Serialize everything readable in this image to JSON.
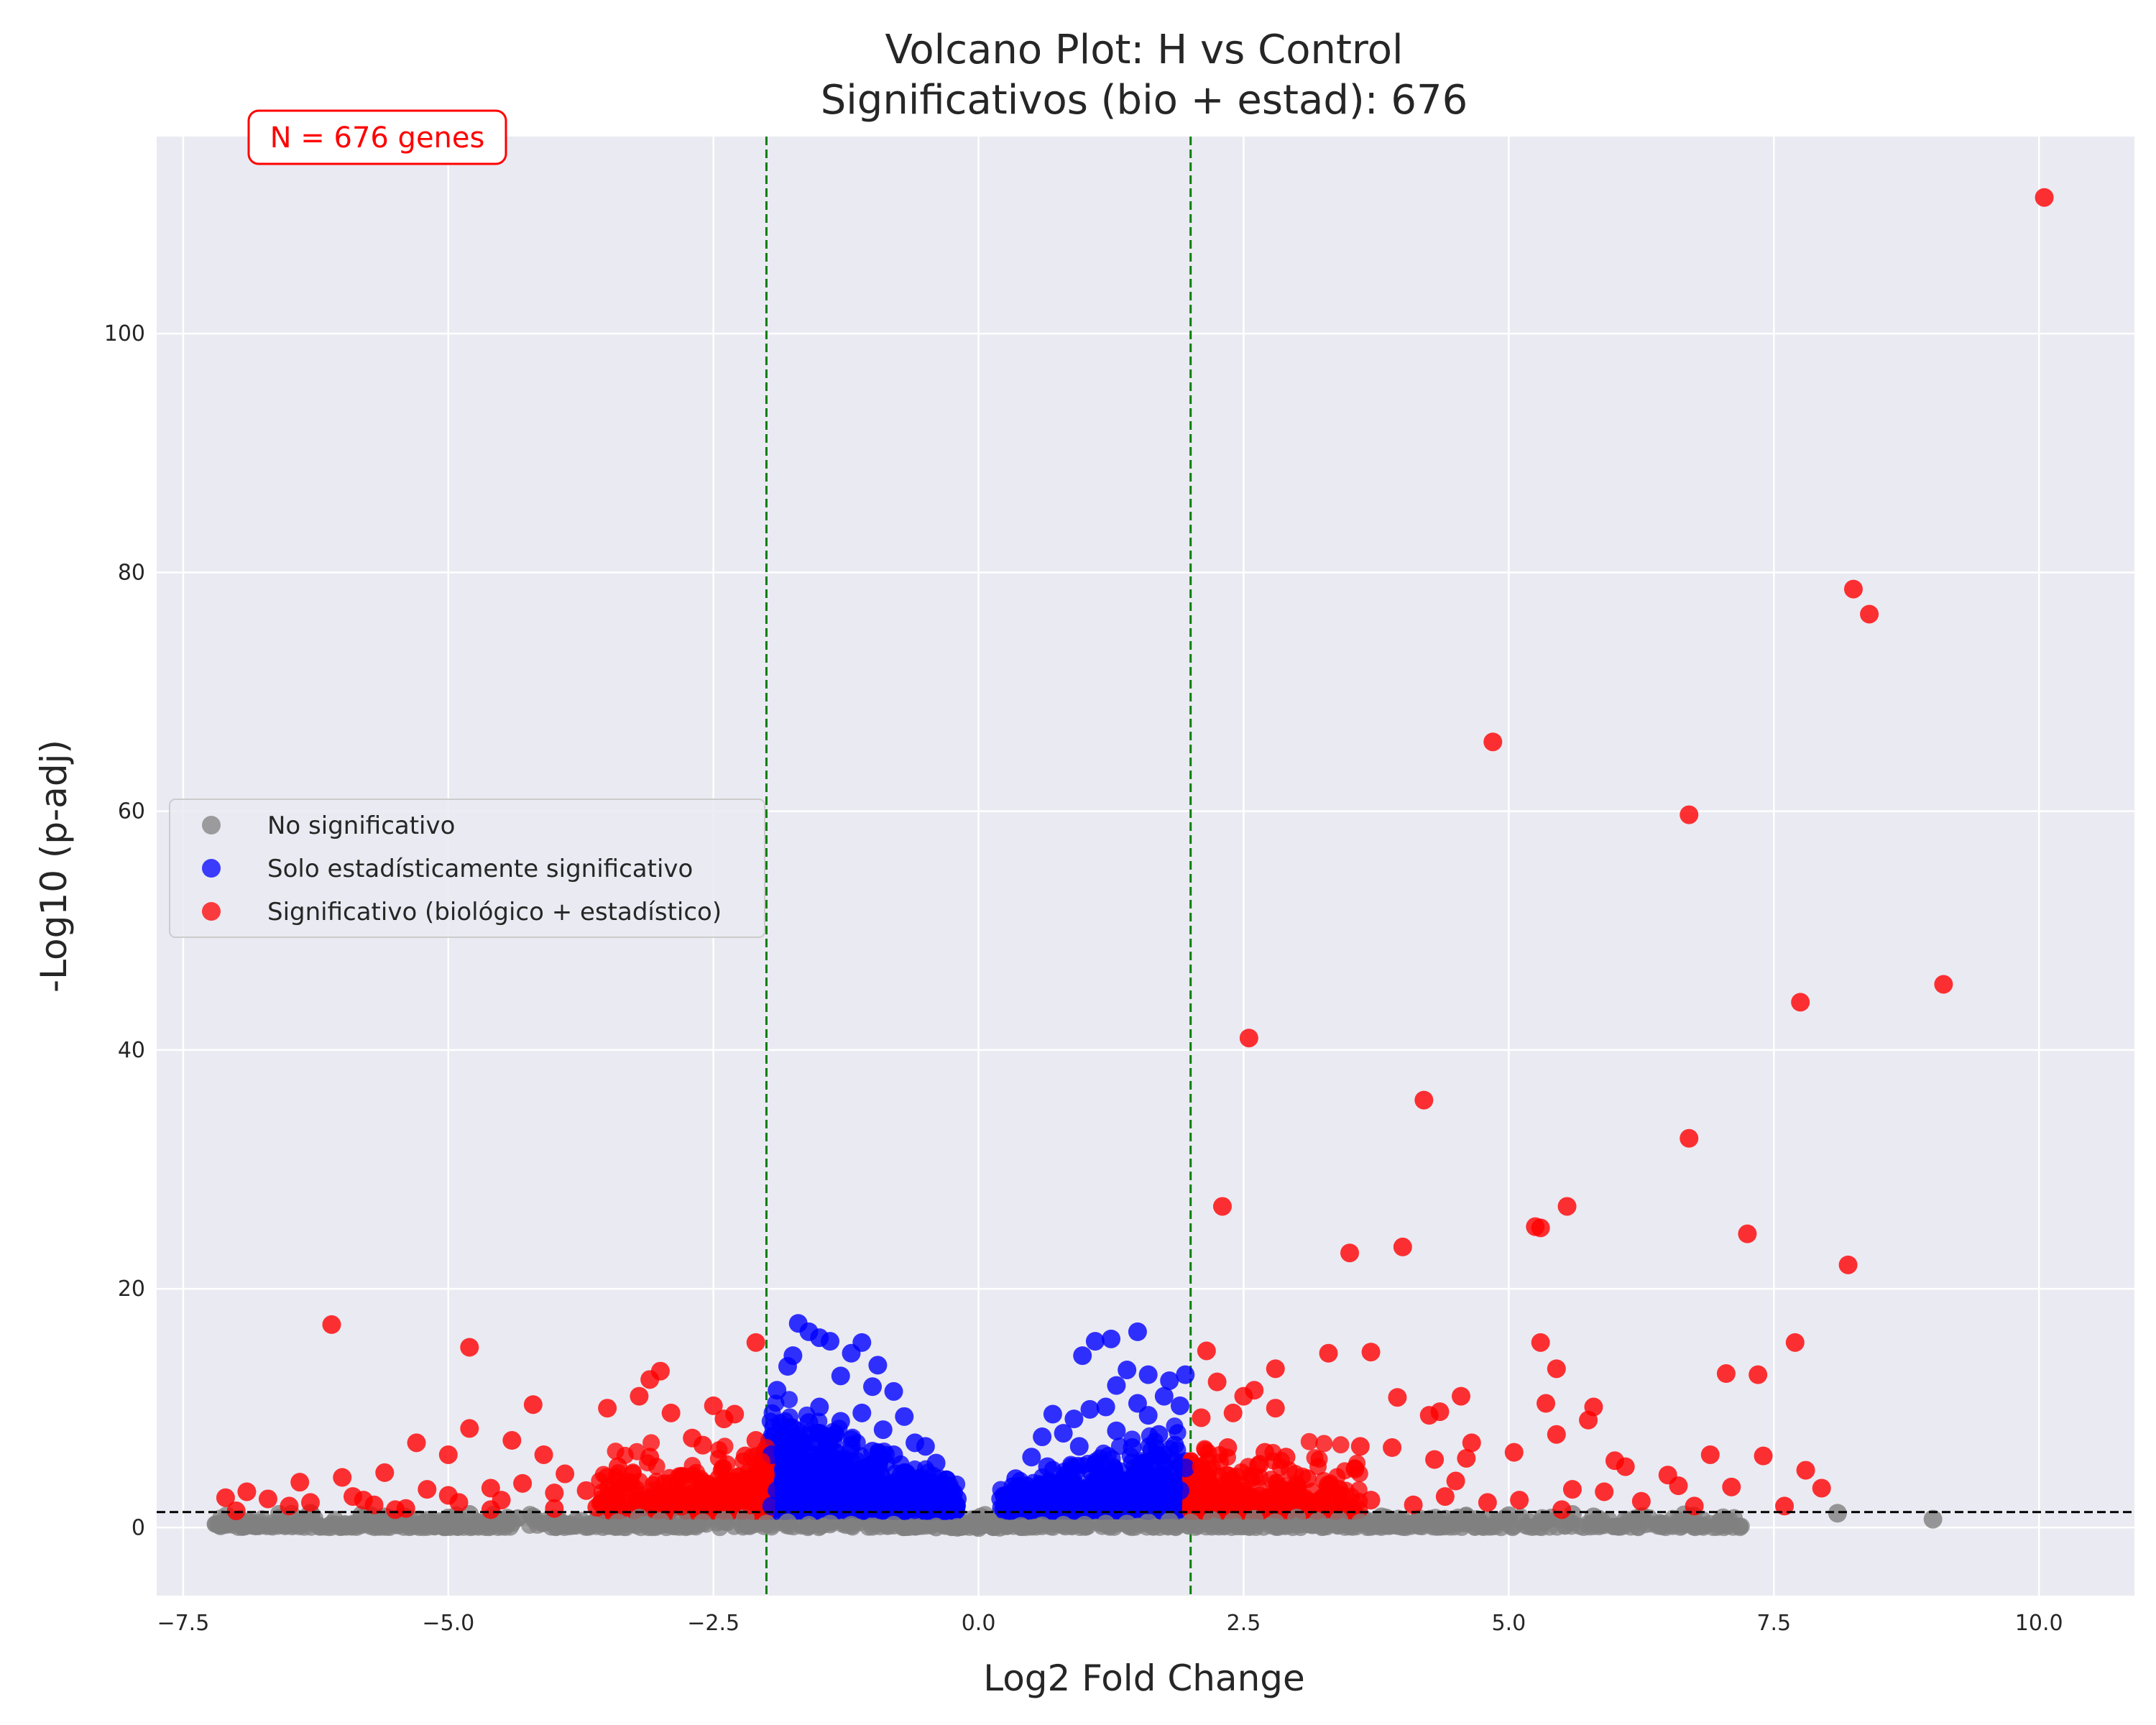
{
  "chart_data": {
    "type": "scatter",
    "title": "Volcano Plot: H vs Control",
    "subtitle": "Significativos (bio + estad): 676",
    "xlabel": "Log2 Fold Change",
    "ylabel": "-Log10 (p-adj)",
    "xlim": [
      -7.75,
      10.9
    ],
    "ylim": [
      -5.7,
      116.5
    ],
    "xticks": [
      -7.5,
      -5.0,
      -2.5,
      0.0,
      2.5,
      5.0,
      7.5,
      10.0
    ],
    "xtick_labels": [
      "−7.5",
      "−5.0",
      "−2.5",
      "0.0",
      "2.5",
      "5.0",
      "7.5",
      "10.0"
    ],
    "yticks": [
      0,
      20,
      40,
      60,
      80,
      100
    ],
    "ytick_labels": [
      "0",
      "20",
      "40",
      "60",
      "80",
      "100"
    ],
    "grid": true,
    "background": "#eaeaf2",
    "legend_position": "center-left",
    "thresholds": {
      "log2fc": [
        -2,
        2
      ],
      "neg_log10_padj": 1.3
    },
    "annotation": "N = 676 genes",
    "series": [
      {
        "name": "No significativo",
        "color": "#808080",
        "points": [
          [
            -6.3,
            1.2
          ],
          [
            -5.6,
            0.9
          ],
          [
            -5.2,
            0.6
          ],
          [
            -5.0,
            0.8
          ],
          [
            -4.8,
            1.1
          ],
          [
            -4.6,
            0.5
          ],
          [
            -4.4,
            0.4
          ],
          [
            -4.2,
            0.9
          ],
          [
            -4.0,
            0.7
          ],
          [
            -3.8,
            0.5
          ],
          [
            -3.6,
            0.6
          ],
          [
            -3.4,
            0.4
          ],
          [
            -3.2,
            0.8
          ],
          [
            -3.0,
            0.5
          ],
          [
            -2.8,
            0.7
          ],
          [
            -2.6,
            0.4
          ],
          [
            -2.4,
            0.6
          ],
          [
            -2.2,
            0.8
          ],
          [
            -2.0,
            0.3
          ],
          [
            -1.8,
            0.4
          ],
          [
            -1.6,
            0.2
          ],
          [
            -1.4,
            0.3
          ],
          [
            -1.2,
            0.2
          ],
          [
            -1.0,
            0.1
          ],
          [
            -0.8,
            0.2
          ],
          [
            -0.6,
            0.1
          ],
          [
            -0.4,
            0.05
          ],
          [
            -0.2,
            0.02
          ],
          [
            0.0,
            0.0
          ],
          [
            0.2,
            0.03
          ],
          [
            0.4,
            0.1
          ],
          [
            0.6,
            0.15
          ],
          [
            0.8,
            0.2
          ],
          [
            1.0,
            0.2
          ],
          [
            1.2,
            0.3
          ],
          [
            1.4,
            0.3
          ],
          [
            1.6,
            0.4
          ],
          [
            1.8,
            0.5
          ],
          [
            2.0,
            0.4
          ],
          [
            2.2,
            0.6
          ],
          [
            2.4,
            0.5
          ],
          [
            2.6,
            0.7
          ],
          [
            2.8,
            0.4
          ],
          [
            3.0,
            0.8
          ],
          [
            3.2,
            0.5
          ],
          [
            3.4,
            0.6
          ],
          [
            3.6,
            0.4
          ],
          [
            3.8,
            0.9
          ],
          [
            4.0,
            0.6
          ],
          [
            4.2,
            0.5
          ],
          [
            4.4,
            0.7
          ],
          [
            4.6,
            0.9
          ],
          [
            4.8,
            0.6
          ],
          [
            5.0,
            1.0
          ],
          [
            5.2,
            0.4
          ],
          [
            5.4,
            0.8
          ],
          [
            5.6,
            1.1
          ],
          [
            5.8,
            0.9
          ],
          [
            6.1,
            0.6
          ],
          [
            8.1,
            1.2
          ],
          [
            9.0,
            0.7
          ]
        ]
      },
      {
        "name": "Solo estadísticamente significativo",
        "color": "#0000ff",
        "points": [
          [
            -1.7,
            17.1
          ],
          [
            -1.6,
            16.4
          ],
          [
            -1.5,
            15.9
          ],
          [
            -1.4,
            15.6
          ],
          [
            -1.1,
            15.5
          ],
          [
            -1.2,
            14.6
          ],
          [
            -1.75,
            14.4
          ],
          [
            -1.8,
            13.5
          ],
          [
            -0.95,
            13.6
          ],
          [
            -1.3,
            12.7
          ],
          [
            -1.9,
            11.5
          ],
          [
            -1.0,
            11.8
          ],
          [
            -0.8,
            11.4
          ],
          [
            -0.7,
            9.3
          ],
          [
            -0.5,
            6.8
          ],
          [
            -1.5,
            10.1
          ],
          [
            -1.6,
            8.8
          ],
          [
            -1.3,
            8.9
          ],
          [
            -1.1,
            9.6
          ],
          [
            -0.9,
            8.2
          ],
          [
            -0.6,
            7.1
          ],
          [
            -0.4,
            5.4
          ],
          [
            -0.3,
            4.0
          ],
          [
            -0.2,
            2.4
          ],
          [
            -1.85,
            7.4
          ],
          [
            -1.95,
            6.1
          ],
          [
            -1.7,
            7.7
          ],
          [
            -1.4,
            7.5
          ],
          [
            -1.2,
            6.9
          ],
          [
            -1.0,
            6.4
          ],
          [
            -0.8,
            6.1
          ],
          [
            -1.6,
            5.4
          ],
          [
            -1.3,
            5.1
          ],
          [
            -1.8,
            4.6
          ],
          [
            -1.5,
            3.9
          ],
          [
            -1.1,
            4.2
          ],
          [
            -0.7,
            4.6
          ],
          [
            -1.9,
            3.1
          ],
          [
            -1.4,
            2.8
          ],
          [
            -0.9,
            3.1
          ],
          [
            -0.5,
            2.5
          ],
          [
            -1.7,
            2.1
          ],
          [
            -1.2,
            2.3
          ],
          [
            -0.3,
            1.7
          ],
          [
            -1.95,
            1.8
          ],
          [
            -1.0,
            1.6
          ],
          [
            -0.6,
            1.5
          ],
          [
            1.5,
            16.4
          ],
          [
            1.1,
            15.6
          ],
          [
            1.25,
            15.8
          ],
          [
            0.98,
            14.4
          ],
          [
            1.3,
            11.9
          ],
          [
            1.4,
            13.2
          ],
          [
            1.6,
            12.8
          ],
          [
            1.8,
            12.3
          ],
          [
            1.95,
            12.8
          ],
          [
            1.75,
            11.0
          ],
          [
            0.7,
            9.5
          ],
          [
            1.2,
            10.1
          ],
          [
            1.05,
            9.9
          ],
          [
            0.9,
            9.1
          ],
          [
            1.6,
            9.4
          ],
          [
            1.9,
            10.2
          ],
          [
            1.5,
            10.4
          ],
          [
            0.6,
            7.6
          ],
          [
            0.8,
            7.9
          ],
          [
            1.3,
            8.1
          ],
          [
            1.7,
            7.8
          ],
          [
            0.5,
            5.9
          ],
          [
            0.95,
            6.8
          ],
          [
            1.45,
            6.7
          ],
          [
            1.85,
            6.9
          ],
          [
            0.35,
            4.1
          ],
          [
            0.65,
            5.1
          ],
          [
            1.1,
            5.3
          ],
          [
            1.55,
            5.4
          ],
          [
            1.95,
            5.0
          ],
          [
            0.25,
            2.6
          ],
          [
            0.45,
            3.5
          ],
          [
            0.8,
            4.0
          ],
          [
            1.25,
            4.3
          ],
          [
            1.7,
            4.1
          ],
          [
            0.3,
            1.8
          ],
          [
            0.55,
            2.3
          ],
          [
            1.0,
            2.7
          ],
          [
            1.4,
            2.9
          ],
          [
            1.9,
            3.1
          ],
          [
            0.75,
            1.7
          ],
          [
            1.6,
            1.9
          ]
        ]
      },
      {
        "name": "Significativo (biológico + estadístico)",
        "color": "#ff0000",
        "points": [
          [
            -7.1,
            2.5
          ],
          [
            -7.0,
            1.4
          ],
          [
            -6.9,
            3.0
          ],
          [
            -6.7,
            2.4
          ],
          [
            -6.5,
            1.8
          ],
          [
            -6.4,
            3.8
          ],
          [
            -6.3,
            2.1
          ],
          [
            -6.1,
            17.0
          ],
          [
            -6.0,
            4.2
          ],
          [
            -5.9,
            2.6
          ],
          [
            -5.8,
            2.3
          ],
          [
            -5.7,
            1.9
          ],
          [
            -5.6,
            4.6
          ],
          [
            -5.4,
            1.6
          ],
          [
            -5.3,
            7.1
          ],
          [
            -5.2,
            3.2
          ],
          [
            -5.0,
            2.7
          ],
          [
            -5.0,
            6.1
          ],
          [
            -4.9,
            2.1
          ],
          [
            -4.8,
            15.1
          ],
          [
            -4.8,
            8.3
          ],
          [
            -4.6,
            3.3
          ],
          [
            -4.5,
            2.3
          ],
          [
            -4.4,
            7.3
          ],
          [
            -4.3,
            3.7
          ],
          [
            -4.2,
            10.3
          ],
          [
            -4.1,
            6.1
          ],
          [
            -4.0,
            2.9
          ],
          [
            -3.9,
            4.5
          ],
          [
            -3.7,
            3.1
          ],
          [
            -3.5,
            10.0
          ],
          [
            -3.4,
            5.1
          ],
          [
            -3.3,
            3.8
          ],
          [
            -3.2,
            11.0
          ],
          [
            -3.1,
            12.4
          ],
          [
            -3.0,
            13.1
          ],
          [
            -2.9,
            9.6
          ],
          [
            -2.8,
            4.3
          ],
          [
            -2.7,
            7.5
          ],
          [
            -2.6,
            6.9
          ],
          [
            -2.5,
            10.2
          ],
          [
            -2.4,
            9.1
          ],
          [
            -2.3,
            9.5
          ],
          [
            -2.2,
            6.0
          ],
          [
            -2.1,
            15.5
          ],
          [
            -2.05,
            5.5
          ],
          [
            -2.6,
            2.2
          ],
          [
            -2.3,
            3.0
          ],
          [
            -2.8,
            1.8
          ],
          [
            -3.5,
            2.3
          ],
          [
            -4.0,
            1.6
          ],
          [
            -2.2,
            2.6
          ],
          [
            -2.45,
            4.1
          ],
          [
            -2.1,
            7.3
          ],
          [
            -2.15,
            1.9
          ],
          [
            -3.1,
            5.9
          ],
          [
            -2.9,
            3.7
          ],
          [
            -3.6,
            1.7
          ],
          [
            -4.6,
            1.5
          ],
          [
            -5.5,
            1.5
          ],
          [
            2.1,
            9.2
          ],
          [
            2.15,
            14.8
          ],
          [
            2.25,
            12.2
          ],
          [
            2.3,
            26.9
          ],
          [
            2.4,
            9.6
          ],
          [
            2.5,
            11.0
          ],
          [
            2.55,
            41.0
          ],
          [
            2.6,
            11.5
          ],
          [
            2.7,
            6.3
          ],
          [
            2.8,
            13.3
          ],
          [
            2.8,
            10.0
          ],
          [
            2.9,
            5.9
          ],
          [
            3.1,
            4.1
          ],
          [
            3.3,
            14.6
          ],
          [
            3.5,
            23.0
          ],
          [
            3.6,
            6.8
          ],
          [
            3.7,
            14.7
          ],
          [
            3.9,
            6.7
          ],
          [
            3.95,
            10.9
          ],
          [
            4.0,
            23.5
          ],
          [
            4.2,
            35.8
          ],
          [
            4.25,
            9.4
          ],
          [
            4.3,
            5.7
          ],
          [
            4.35,
            9.7
          ],
          [
            4.5,
            3.9
          ],
          [
            4.55,
            11.0
          ],
          [
            4.6,
            5.8
          ],
          [
            4.65,
            7.1
          ],
          [
            4.85,
            65.8
          ],
          [
            5.05,
            6.3
          ],
          [
            5.25,
            25.2
          ],
          [
            5.3,
            25.1
          ],
          [
            5.3,
            15.5
          ],
          [
            5.35,
            10.4
          ],
          [
            5.45,
            13.3
          ],
          [
            5.45,
            7.8
          ],
          [
            5.55,
            26.9
          ],
          [
            5.6,
            3.2
          ],
          [
            5.75,
            9.0
          ],
          [
            5.8,
            10.1
          ],
          [
            5.9,
            3.0
          ],
          [
            6.0,
            5.6
          ],
          [
            6.1,
            5.1
          ],
          [
            6.25,
            2.2
          ],
          [
            6.5,
            4.4
          ],
          [
            6.6,
            3.5
          ],
          [
            6.7,
            59.7
          ],
          [
            6.7,
            32.6
          ],
          [
            6.75,
            1.8
          ],
          [
            6.9,
            6.1
          ],
          [
            7.05,
            12.9
          ],
          [
            7.1,
            3.4
          ],
          [
            7.25,
            24.6
          ],
          [
            7.35,
            12.8
          ],
          [
            7.4,
            6.0
          ],
          [
            7.6,
            1.8
          ],
          [
            7.7,
            15.5
          ],
          [
            7.75,
            44.0
          ],
          [
            7.8,
            4.8
          ],
          [
            7.95,
            3.3
          ],
          [
            8.2,
            22.0
          ],
          [
            8.25,
            78.6
          ],
          [
            8.4,
            76.5
          ],
          [
            9.1,
            45.5
          ],
          [
            10.05,
            111.4
          ],
          [
            2.2,
            3.1
          ],
          [
            2.4,
            2.2
          ],
          [
            2.6,
            4.3
          ],
          [
            2.9,
            2.4
          ],
          [
            3.2,
            2.1
          ],
          [
            3.4,
            3.2
          ],
          [
            3.7,
            2.3
          ],
          [
            4.1,
            1.9
          ],
          [
            4.4,
            2.6
          ],
          [
            4.8,
            2.1
          ],
          [
            5.1,
            2.3
          ],
          [
            5.5,
            1.5
          ],
          [
            2.1,
            5.1
          ],
          [
            2.35,
            6.7
          ],
          [
            2.65,
            5.3
          ],
          [
            3.0,
            3.6
          ],
          [
            3.55,
            4.9
          ],
          [
            2.05,
            1.9
          ]
        ]
      }
    ]
  }
}
